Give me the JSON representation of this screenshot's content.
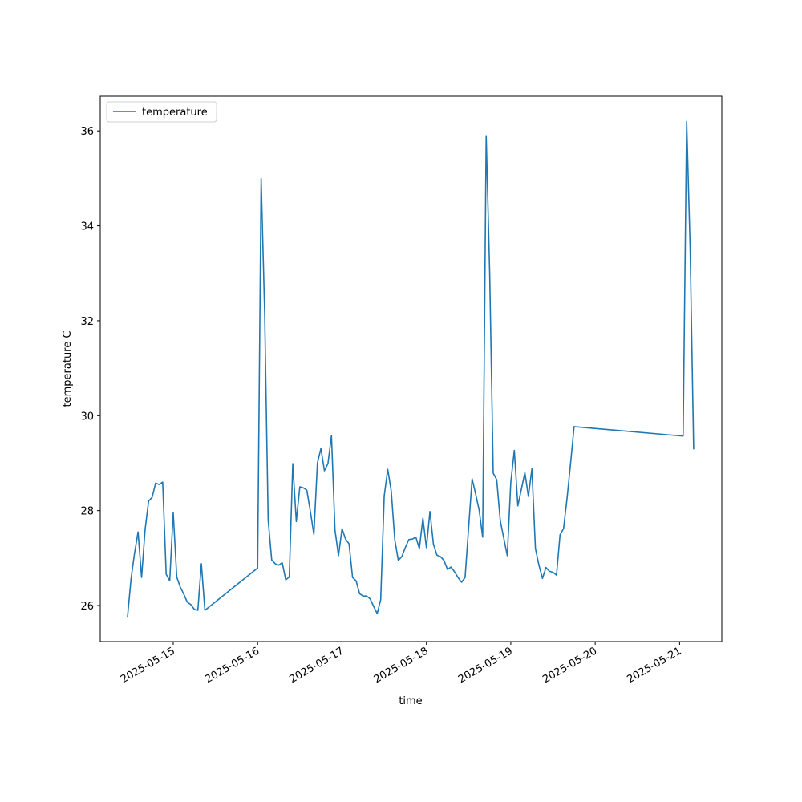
{
  "chart_data": {
    "type": "line",
    "x_label": "time",
    "y_label": "temperature C",
    "legend": "upper left",
    "grid": false,
    "x": [
      "2025-05-14 11:00",
      "2025-05-14 12:00",
      "2025-05-14 13:00",
      "2025-05-14 14:00",
      "2025-05-14 15:00",
      "2025-05-14 16:00",
      "2025-05-14 17:00",
      "2025-05-14 18:00",
      "2025-05-14 19:00",
      "2025-05-14 20:00",
      "2025-05-14 21:00",
      "2025-05-14 22:00",
      "2025-05-14 23:00",
      "2025-05-15 00:00",
      "2025-05-15 01:00",
      "2025-05-15 02:00",
      "2025-05-15 03:00",
      "2025-05-15 04:00",
      "2025-05-15 05:00",
      "2025-05-15 06:00",
      "2025-05-15 07:00",
      "2025-05-15 08:00",
      "2025-05-15 09:00",
      "2025-05-16 00:00",
      "2025-05-16 01:00",
      "2025-05-16 02:00",
      "2025-05-16 03:00",
      "2025-05-16 04:00",
      "2025-05-16 05:00",
      "2025-05-16 06:00",
      "2025-05-16 07:00",
      "2025-05-16 08:00",
      "2025-05-16 09:00",
      "2025-05-16 10:00",
      "2025-05-16 11:00",
      "2025-05-16 12:00",
      "2025-05-16 13:00",
      "2025-05-16 14:00",
      "2025-05-16 15:00",
      "2025-05-16 16:00",
      "2025-05-16 17:00",
      "2025-05-16 18:00",
      "2025-05-16 19:00",
      "2025-05-16 20:00",
      "2025-05-16 21:00",
      "2025-05-16 22:00",
      "2025-05-16 23:00",
      "2025-05-17 00:00",
      "2025-05-17 01:00",
      "2025-05-17 02:00",
      "2025-05-17 03:00",
      "2025-05-17 04:00",
      "2025-05-17 05:00",
      "2025-05-17 06:00",
      "2025-05-17 07:00",
      "2025-05-17 08:00",
      "2025-05-17 09:00",
      "2025-05-17 10:00",
      "2025-05-17 11:00",
      "2025-05-17 12:00",
      "2025-05-17 13:00",
      "2025-05-17 14:00",
      "2025-05-17 15:00",
      "2025-05-17 16:00",
      "2025-05-17 17:00",
      "2025-05-17 18:00",
      "2025-05-17 19:00",
      "2025-05-17 20:00",
      "2025-05-17 21:00",
      "2025-05-17 22:00",
      "2025-05-17 23:00",
      "2025-05-18 00:00",
      "2025-05-18 01:00",
      "2025-05-18 02:00",
      "2025-05-18 03:00",
      "2025-05-18 04:00",
      "2025-05-18 05:00",
      "2025-05-18 06:00",
      "2025-05-18 07:00",
      "2025-05-18 08:00",
      "2025-05-18 09:00",
      "2025-05-18 10:00",
      "2025-05-18 11:00",
      "2025-05-18 12:00",
      "2025-05-18 13:00",
      "2025-05-18 14:00",
      "2025-05-18 15:00",
      "2025-05-18 16:00",
      "2025-05-18 17:00",
      "2025-05-18 18:00",
      "2025-05-18 19:00",
      "2025-05-18 20:00",
      "2025-05-18 21:00",
      "2025-05-18 22:00",
      "2025-05-18 23:00",
      "2025-05-19 00:00",
      "2025-05-19 01:00",
      "2025-05-19 02:00",
      "2025-05-19 03:00",
      "2025-05-19 04:00",
      "2025-05-19 05:00",
      "2025-05-19 06:00",
      "2025-05-19 07:00",
      "2025-05-19 08:00",
      "2025-05-19 09:00",
      "2025-05-19 10:00",
      "2025-05-19 11:00",
      "2025-05-19 12:00",
      "2025-05-19 13:00",
      "2025-05-19 14:00",
      "2025-05-19 15:00",
      "2025-05-19 16:00",
      "2025-05-19 17:00",
      "2025-05-19 18:00",
      "2025-05-21 01:00",
      "2025-05-21 02:00",
      "2025-05-21 03:00",
      "2025-05-21 04:00"
    ],
    "series": [
      {
        "name": "temperature",
        "color": "#1f77b4",
        "values": [
          25.76,
          26.56,
          27.1,
          27.55,
          26.59,
          27.6,
          28.2,
          28.28,
          28.58,
          28.55,
          28.6,
          26.66,
          26.52,
          27.96,
          26.6,
          26.39,
          26.24,
          26.07,
          26.02,
          25.92,
          25.9,
          26.88,
          25.9,
          26.79,
          35.0,
          32.17,
          27.8,
          26.96,
          26.88,
          26.85,
          26.9,
          26.54,
          26.6,
          28.99,
          27.77,
          28.5,
          28.48,
          28.43,
          27.98,
          27.5,
          29.0,
          29.31,
          28.84,
          28.99,
          29.58,
          27.59,
          27.05,
          27.62,
          27.4,
          27.3,
          26.59,
          26.52,
          26.25,
          26.2,
          26.2,
          26.14,
          25.98,
          25.83,
          26.12,
          28.31,
          28.87,
          28.41,
          27.39,
          26.95,
          27.03,
          27.22,
          27.39,
          27.4,
          27.44,
          27.2,
          27.84,
          27.22,
          27.98,
          27.29,
          27.06,
          27.03,
          26.95,
          26.76,
          26.81,
          26.71,
          26.59,
          26.49,
          26.59,
          27.64,
          28.67,
          28.35,
          28.01,
          27.44,
          35.9,
          32.98,
          28.79,
          28.65,
          27.79,
          27.42,
          27.05,
          28.6,
          29.27,
          28.1,
          28.45,
          28.8,
          28.3,
          28.88,
          27.2,
          26.85,
          26.57,
          26.8,
          26.72,
          26.7,
          26.64,
          27.49,
          27.62,
          28.26,
          29.0,
          29.77,
          29.57,
          36.2,
          33.52,
          29.29
        ]
      }
    ],
    "xlim": [
      "2025-05-14 03:15",
      "2025-05-21 12:00"
    ],
    "xticks": [
      {
        "value": "2025-05-15 00:00",
        "label": "2025-05-15"
      },
      {
        "value": "2025-05-16 00:00",
        "label": "2025-05-16"
      },
      {
        "value": "2025-05-17 00:00",
        "label": "2025-05-17"
      },
      {
        "value": "2025-05-18 00:00",
        "label": "2025-05-18"
      },
      {
        "value": "2025-05-19 00:00",
        "label": "2025-05-19"
      },
      {
        "value": "2025-05-20 00:00",
        "label": "2025-05-20"
      },
      {
        "value": "2025-05-21 00:00",
        "label": "2025-05-21"
      }
    ],
    "ylim": [
      25.24,
      36.73
    ],
    "yticks": [
      26,
      28,
      30,
      32,
      34,
      36
    ]
  }
}
